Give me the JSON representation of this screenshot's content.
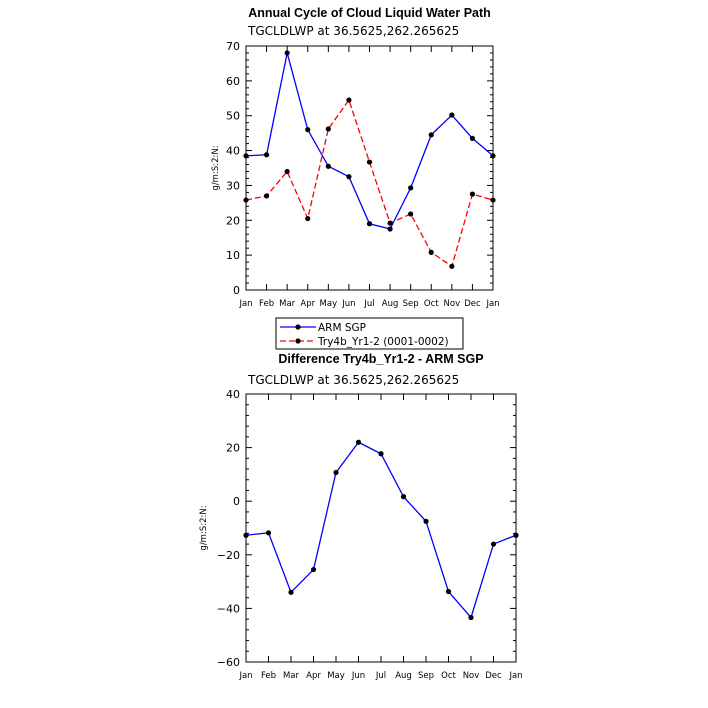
{
  "chart_data": [
    {
      "type": "line",
      "title": "Annual Cycle of Cloud Liquid Water Path",
      "subtitle": "TGCLDLWP at 36.5625,262.265625",
      "ylabel": "g/m:S:2:N:",
      "xlabel": "",
      "ylim": [
        0,
        70
      ],
      "yticks": [
        0,
        10,
        20,
        30,
        40,
        50,
        60,
        70
      ],
      "categories": [
        "Jan",
        "Feb",
        "Mar",
        "Apr",
        "May",
        "Jun",
        "Jul",
        "Aug",
        "Sep",
        "Oct",
        "Nov",
        "Dec",
        "Jan"
      ],
      "series": [
        {
          "name": "ARM SGP",
          "color": "#0000ff",
          "dash": "solid",
          "values": [
            38.5,
            38.8,
            68.0,
            46.0,
            35.5,
            32.5,
            19.0,
            17.5,
            29.3,
            44.5,
            50.2,
            43.5,
            38.5
          ]
        },
        {
          "name": "Try4b_Yr1-2 (0001-0002)",
          "color": "#ff0000",
          "dash": "dashed",
          "values": [
            25.8,
            27.0,
            34.0,
            20.5,
            46.2,
            54.5,
            36.7,
            19.2,
            21.8,
            10.8,
            6.8,
            27.5,
            25.8
          ]
        }
      ],
      "legend_position": "bottom"
    },
    {
      "type": "line",
      "title": "Difference Try4b_Yr1-2 - ARM SGP",
      "subtitle": "TGCLDLWP at 36.5625,262.265625",
      "ylabel": "g/m:S:2:N:",
      "xlabel": "",
      "ylim": [
        -60,
        40
      ],
      "yticks": [
        -60,
        -40,
        -20,
        0,
        20,
        40
      ],
      "categories": [
        "Jan",
        "Feb",
        "Mar",
        "Apr",
        "May",
        "Jun",
        "Jul",
        "Aug",
        "Sep",
        "Oct",
        "Nov",
        "Dec",
        "Jan"
      ],
      "series": [
        {
          "name": "Difference",
          "color": "#0000ff",
          "dash": "solid",
          "values": [
            -12.7,
            -11.8,
            -34.0,
            -25.5,
            10.7,
            22.0,
            17.7,
            1.7,
            -7.5,
            -33.7,
            -43.4,
            -16.0,
            -12.7
          ]
        }
      ]
    }
  ]
}
